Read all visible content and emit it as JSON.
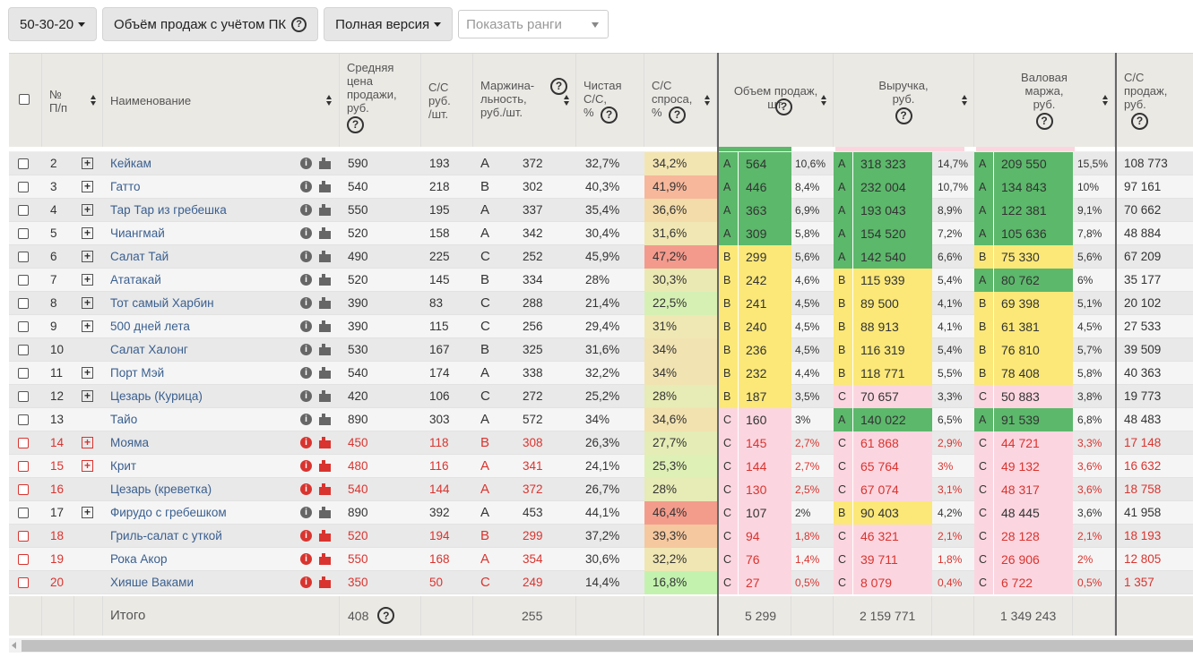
{
  "toolbar": {
    "rank_scheme": "50-30-20",
    "sales_button": "Объём продаж с учётом ПК",
    "version_button": "Полная версия",
    "ranks_placeholder": "Показать ранги",
    "help_glyph": "?"
  },
  "columns": {
    "num_line1": "№",
    "num_line2": "П/п",
    "name": "Наименование",
    "avg_price": [
      "Средняя",
      "цена",
      "продажи,",
      "руб."
    ],
    "cost": [
      "С/С",
      "руб.",
      "/шт."
    ],
    "margin": [
      "Маржина-",
      "льность,",
      "руб./шт."
    ],
    "net_cost": [
      "Чистая",
      "С/С,",
      "%"
    ],
    "demand_cost": [
      "С/С",
      "спроса,",
      "%"
    ],
    "sales_volume": [
      "Объем продаж,",
      "шт."
    ],
    "revenue": [
      "Выручка,",
      "руб."
    ],
    "gross_margin": [
      "Валовая",
      "маржа,",
      "руб."
    ],
    "sales_cost": [
      "С/С",
      "продаж,",
      "руб."
    ]
  },
  "colors": {
    "green": "#5cb86b",
    "yellow": "#fbe878",
    "pink": "#fbd6e0",
    "accent_red": "#d9342f",
    "link_blue": "#3a5f8f"
  },
  "rows": [
    {
      "n": "2",
      "name": "Кейкам",
      "plus": true,
      "red": false,
      "price": "590",
      "cost": "193",
      "mr": "A",
      "margin": "372",
      "net": "32,7%",
      "dem": "34,2%",
      "demc": "#f3e5b2",
      "vr": "A",
      "vol": "564",
      "volp": "10,6%",
      "rr": "A",
      "rev": "318 323",
      "revp": "14,7%",
      "gr": "A",
      "gm": "209 550",
      "gmp": "15,5%",
      "sc": "108 773"
    },
    {
      "n": "3",
      "name": "Гатто",
      "plus": true,
      "red": false,
      "price": "540",
      "cost": "218",
      "mr": "B",
      "margin": "302",
      "net": "40,3%",
      "dem": "41,9%",
      "demc": "#f7b79a",
      "vr": "A",
      "vol": "446",
      "volp": "8,4%",
      "rr": "A",
      "rev": "232 004",
      "revp": "10,7%",
      "gr": "A",
      "gm": "134 843",
      "gmp": "10%",
      "sc": "97 161"
    },
    {
      "n": "4",
      "name": "Тар Тар из гребешка",
      "plus": true,
      "red": false,
      "price": "550",
      "cost": "195",
      "mr": "A",
      "margin": "337",
      "net": "35,4%",
      "dem": "36,6%",
      "demc": "#f3dcaa",
      "vr": "A",
      "vol": "363",
      "volp": "6,9%",
      "rr": "A",
      "rev": "193 043",
      "revp": "8,9%",
      "gr": "A",
      "gm": "122 381",
      "gmp": "9,1%",
      "sc": "70 662"
    },
    {
      "n": "5",
      "name": "Чиангмай",
      "plus": true,
      "red": false,
      "price": "520",
      "cost": "158",
      "mr": "A",
      "margin": "342",
      "net": "30,4%",
      "dem": "31,6%",
      "demc": "#f0e7b4",
      "vr": "A",
      "vol": "309",
      "volp": "5,8%",
      "rr": "A",
      "rev": "154 520",
      "revp": "7,2%",
      "gr": "A",
      "gm": "105 636",
      "gmp": "7,8%",
      "sc": "48 884"
    },
    {
      "n": "6",
      "name": "Салат Тай",
      "plus": true,
      "red": false,
      "price": "490",
      "cost": "225",
      "mr": "C",
      "margin": "252",
      "net": "45,9%",
      "dem": "47,2%",
      "demc": "#f39a8c",
      "vr": "B",
      "vol": "299",
      "volp": "5,6%",
      "rr": "A",
      "rev": "142 540",
      "revp": "6,6%",
      "gr": "B",
      "gm": "75 330",
      "gmp": "5,6%",
      "sc": "67 209"
    },
    {
      "n": "7",
      "name": "Ататакай",
      "plus": true,
      "red": false,
      "price": "520",
      "cost": "145",
      "mr": "B",
      "margin": "334",
      "net": "28%",
      "dem": "30,3%",
      "demc": "#ebe9b3",
      "vr": "B",
      "vol": "242",
      "volp": "4,6%",
      "rr": "B",
      "rev": "115 939",
      "revp": "5,4%",
      "gr": "A",
      "gm": "80 762",
      "gmp": "6%",
      "sc": "35 177"
    },
    {
      "n": "8",
      "name": "Тот самый Харбин",
      "plus": true,
      "red": false,
      "price": "390",
      "cost": "83",
      "mr": "C",
      "margin": "288",
      "net": "21,4%",
      "dem": "22,5%",
      "demc": "#d6f0b4",
      "vr": "B",
      "vol": "241",
      "volp": "4,5%",
      "rr": "B",
      "rev": "89 500",
      "revp": "4,1%",
      "gr": "B",
      "gm": "69 398",
      "gmp": "5,1%",
      "sc": "20 102"
    },
    {
      "n": "9",
      "name": "500 дней лета",
      "plus": true,
      "red": false,
      "price": "390",
      "cost": "115",
      "mr": "C",
      "margin": "256",
      "net": "29,4%",
      "dem": "31%",
      "demc": "#efe8b4",
      "vr": "B",
      "vol": "240",
      "volp": "4,5%",
      "rr": "B",
      "rev": "88 913",
      "revp": "4,1%",
      "gr": "B",
      "gm": "61 381",
      "gmp": "4,5%",
      "sc": "27 533"
    },
    {
      "n": "10",
      "name": "Салат Халонг",
      "plus": false,
      "red": false,
      "price": "530",
      "cost": "167",
      "mr": "B",
      "margin": "325",
      "net": "31,6%",
      "dem": "34%",
      "demc": "#f1e3b2",
      "vr": "B",
      "vol": "236",
      "volp": "4,5%",
      "rr": "B",
      "rev": "116 319",
      "revp": "5,4%",
      "gr": "B",
      "gm": "76 810",
      "gmp": "5,7%",
      "sc": "39 509"
    },
    {
      "n": "11",
      "name": "Порт Мэй",
      "plus": true,
      "red": false,
      "price": "540",
      "cost": "174",
      "mr": "A",
      "margin": "338",
      "net": "32,2%",
      "dem": "34%",
      "demc": "#f1e3b2",
      "vr": "B",
      "vol": "232",
      "volp": "4,4%",
      "rr": "B",
      "rev": "118 771",
      "revp": "5,5%",
      "gr": "B",
      "gm": "78 408",
      "gmp": "5,8%",
      "sc": "40 363"
    },
    {
      "n": "12",
      "name": "Цезарь (Курица)",
      "plus": true,
      "red": false,
      "price": "420",
      "cost": "106",
      "mr": "C",
      "margin": "272",
      "net": "25,2%",
      "dem": "28%",
      "demc": "#e7ebb5",
      "vr": "B",
      "vol": "187",
      "volp": "3,5%",
      "rr": "C",
      "rev": "70 657",
      "revp": "3,3%",
      "gr": "C",
      "gm": "50 883",
      "gmp": "3,8%",
      "sc": "19 773"
    },
    {
      "n": "13",
      "name": "Тайо",
      "plus": false,
      "red": false,
      "price": "890",
      "cost": "303",
      "mr": "A",
      "margin": "572",
      "net": "34%",
      "dem": "34,6%",
      "demc": "#f2e2b0",
      "vr": "C",
      "vol": "160",
      "volp": "3%",
      "rr": "A",
      "rev": "140 022",
      "revp": "6,5%",
      "gr": "A",
      "gm": "91 539",
      "gmp": "6,8%",
      "sc": "48 483"
    },
    {
      "n": "14",
      "name": "Мояма",
      "plus": true,
      "red": true,
      "price": "450",
      "cost": "118",
      "mr": "B",
      "margin": "308",
      "net": "26,3%",
      "dem": "27,7%",
      "demc": "#e5ecb6",
      "vr": "C",
      "vol": "145",
      "volp": "2,7%",
      "rr": "C",
      "rev": "61 868",
      "revp": "2,9%",
      "gr": "C",
      "gm": "44 721",
      "gmp": "3,3%",
      "sc": "17 148"
    },
    {
      "n": "15",
      "name": "Крит",
      "plus": true,
      "red": true,
      "price": "480",
      "cost": "116",
      "mr": "A",
      "margin": "341",
      "net": "24,1%",
      "dem": "25,3%",
      "demc": "#def0b6",
      "vr": "C",
      "vol": "144",
      "volp": "2,7%",
      "rr": "C",
      "rev": "65 764",
      "revp": "3%",
      "gr": "C",
      "gm": "49 132",
      "gmp": "3,6%",
      "sc": "16 632"
    },
    {
      "n": "16",
      "name": "Цезарь (креветка)",
      "plus": false,
      "red": true,
      "price": "540",
      "cost": "144",
      "mr": "A",
      "margin": "372",
      "net": "26,7%",
      "dem": "28%",
      "demc": "#e7ebb5",
      "vr": "C",
      "vol": "130",
      "volp": "2,5%",
      "rr": "C",
      "rev": "67 074",
      "revp": "3,1%",
      "gr": "C",
      "gm": "48 317",
      "gmp": "3,6%",
      "sc": "18 758"
    },
    {
      "n": "17",
      "name": "Фирудо с гребешком",
      "plus": true,
      "red": false,
      "price": "890",
      "cost": "392",
      "mr": "A",
      "margin": "453",
      "net": "44,1%",
      "dem": "46,4%",
      "demc": "#f39c8c",
      "vr": "C",
      "vol": "107",
      "volp": "2%",
      "rr": "B",
      "rev": "90 403",
      "revp": "4,2%",
      "gr": "C",
      "gm": "48 445",
      "gmp": "3,6%",
      "sc": "41 958"
    },
    {
      "n": "18",
      "name": "Гриль-салат с уткой",
      "plus": false,
      "red": true,
      "price": "520",
      "cost": "194",
      "mr": "B",
      "margin": "299",
      "net": "37,2%",
      "dem": "39,3%",
      "demc": "#f5c89f",
      "vr": "C",
      "vol": "94",
      "volp": "1,8%",
      "rr": "C",
      "rev": "46 321",
      "revp": "2,1%",
      "gr": "C",
      "gm": "28 128",
      "gmp": "2,1%",
      "sc": "18 193"
    },
    {
      "n": "19",
      "name": "Рока Акор",
      "plus": false,
      "red": true,
      "price": "550",
      "cost": "168",
      "mr": "A",
      "margin": "354",
      "net": "30,6%",
      "dem": "32,2%",
      "demc": "#f0e6b3",
      "vr": "C",
      "vol": "76",
      "volp": "1,4%",
      "rr": "C",
      "rev": "39 711",
      "revp": "1,8%",
      "gr": "C",
      "gm": "26 906",
      "gmp": "2%",
      "sc": "12 805"
    },
    {
      "n": "20",
      "name": "Хияше Ваками",
      "plus": false,
      "red": true,
      "price": "350",
      "cost": "50",
      "mr": "C",
      "margin": "249",
      "net": "14,4%",
      "dem": "16,8%",
      "demc": "#c2f2ae",
      "vr": "C",
      "vol": "27",
      "volp": "0,5%",
      "rr": "C",
      "rev": "8 079",
      "revp": "0,4%",
      "gr": "C",
      "gm": "6 722",
      "gmp": "0,5%",
      "sc": "1 357"
    }
  ],
  "totals": {
    "label": "Итого",
    "avg_price": "408",
    "margin": "255",
    "volume": "5 299",
    "revenue": "2 159 771",
    "gross_margin": "1 349 243"
  }
}
